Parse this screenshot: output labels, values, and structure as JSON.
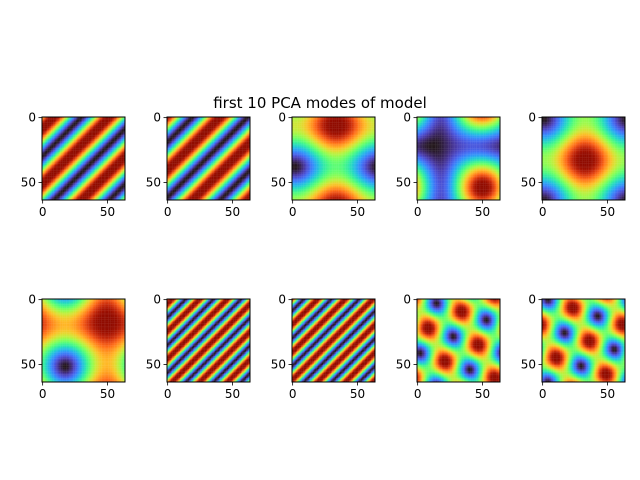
{
  "figure": {
    "title": "first 10 PCA modes of model"
  },
  "colormap": "turbo",
  "chart_data": {
    "type": "heatmap",
    "title": "first 10 PCA modes of model",
    "grid": false,
    "xlim": [
      0,
      63
    ],
    "ylim": [
      63,
      0
    ],
    "x_ticks": [
      0,
      50
    ],
    "y_ticks": [
      0,
      50
    ],
    "panels": [
      {
        "mode": 1,
        "pattern": "diagonal stripes (top-right to bottom-left), ~1.5 periods"
      },
      {
        "mode": 2,
        "pattern": "diagonal stripes, ~1.5 periods, phase shifted"
      },
      {
        "mode": 3,
        "pattern": "two lobes: high top-center and bottom-center, low left and right"
      },
      {
        "mode": 4,
        "pattern": "low at upper-left and lower-right, high at top-right and bottom-right"
      },
      {
        "mode": 5,
        "pattern": "central high blob, low corners"
      },
      {
        "mode": 6,
        "pattern": "high blob upper-right, low blob bottom-left"
      },
      {
        "mode": 7,
        "pattern": "fine diagonal stripes, ~3 periods"
      },
      {
        "mode": 8,
        "pattern": "fine diagonal stripes, ~3 periods, phase shifted"
      },
      {
        "mode": 9,
        "pattern": "oblique elliptical blobs, mixed frequency"
      },
      {
        "mode": 10,
        "pattern": "oblique elliptical blobs, mixed frequency, shifted"
      }
    ]
  }
}
